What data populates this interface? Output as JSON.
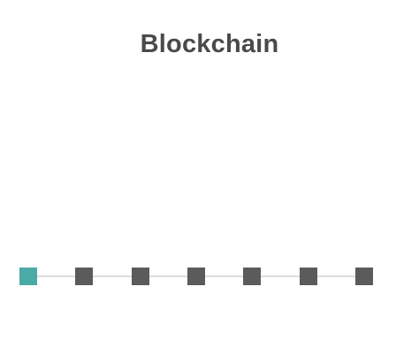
{
  "title": "Blockchain",
  "colors": {
    "active_block": "#4aaaa5",
    "inactive_block": "#5b5b5b",
    "connector": "#dcdcdc",
    "title_text": "#4a4a4a"
  },
  "chain": {
    "block_count": 7,
    "active_index": 0
  }
}
